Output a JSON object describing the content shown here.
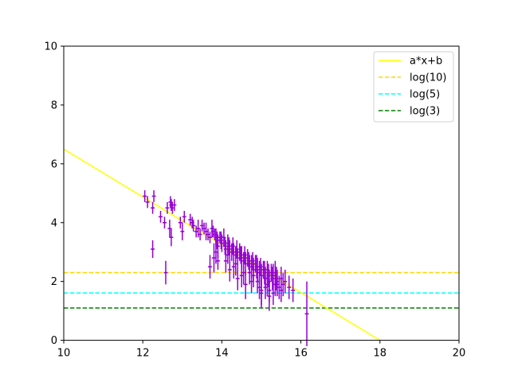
{
  "chart_data": {
    "type": "scatter",
    "title": "",
    "xlabel": "",
    "ylabel": "",
    "xlim": [
      10,
      20
    ],
    "ylim": [
      0,
      10
    ],
    "xticks": [
      10,
      12,
      14,
      16,
      18,
      20
    ],
    "yticks": [
      0,
      2,
      4,
      6,
      8,
      10
    ],
    "grid": false,
    "legend_position": "top-right",
    "legend": [
      {
        "label": "a*x+b",
        "style": "solid",
        "color": "#ffff00"
      },
      {
        "label": "log(10)",
        "style": "dashed",
        "color": "#ffd700"
      },
      {
        "label": "log(5)",
        "style": "dashed",
        "color": "#00ffff"
      },
      {
        "label": "log(3)",
        "style": "dashed",
        "color": "#008000"
      }
    ],
    "fit_line": {
      "slope": -0.8125,
      "intercept": 14.625
    },
    "hlines": [
      {
        "name": "log(10)",
        "y": 2.302585
      },
      {
        "name": "log(5)",
        "y": 1.609438
      },
      {
        "name": "log(3)",
        "y": 1.098612
      }
    ],
    "series": [
      {
        "color": "#9400d3",
        "x": [
          12.05,
          12.12,
          12.25,
          12.28,
          12.25,
          12.45,
          12.55,
          12.62,
          12.7,
          12.72,
          12.75,
          12.8,
          12.68,
          12.72,
          12.58,
          12.95,
          13.05,
          13.0,
          13.2,
          13.25,
          13.28,
          13.35,
          13.4,
          13.45,
          13.5,
          13.55,
          13.6,
          13.65,
          13.7,
          13.75,
          13.78,
          13.82,
          13.85,
          13.88,
          13.95,
          13.9,
          13.85,
          13.8,
          13.98,
          14.0,
          14.05,
          14.08,
          14.1,
          14.15,
          14.18,
          14.2,
          14.25,
          14.28,
          14.3,
          14.35,
          14.38,
          14.4,
          14.45,
          14.48,
          14.5,
          14.55,
          14.58,
          14.6,
          14.65,
          14.68,
          14.7,
          14.75,
          14.78,
          14.8,
          14.85,
          14.88,
          14.9,
          14.95,
          14.98,
          15.0,
          15.05,
          15.08,
          15.1,
          15.15,
          15.18,
          15.2,
          15.25,
          15.28,
          15.3,
          15.35,
          15.38,
          15.4,
          15.45,
          15.5,
          15.55,
          15.6,
          15.7,
          15.8,
          16.15,
          14.1,
          14.3,
          14.5,
          14.6,
          14.7,
          14.9,
          15.0,
          15.1,
          15.2,
          15.3,
          15.4,
          15.5,
          13.7,
          13.9,
          14.2,
          14.4,
          14.8,
          15.0,
          15.2,
          14.15,
          14.35,
          14.55,
          14.75,
          14.95,
          15.15,
          15.35
        ],
        "y": [
          4.9,
          4.7,
          4.5,
          4.9,
          3.1,
          4.2,
          4.0,
          4.5,
          4.7,
          4.6,
          4.5,
          4.6,
          3.8,
          3.5,
          2.3,
          4.0,
          4.2,
          3.7,
          4.1,
          4.0,
          3.9,
          3.7,
          3.8,
          3.6,
          3.9,
          3.8,
          3.7,
          3.6,
          3.5,
          3.8,
          3.7,
          3.6,
          3.5,
          3.4,
          3.5,
          3.2,
          3.0,
          2.8,
          3.4,
          3.3,
          3.5,
          3.2,
          3.1,
          3.3,
          3.2,
          3.1,
          3.0,
          3.2,
          3.0,
          2.9,
          3.1,
          2.8,
          3.0,
          2.9,
          2.8,
          2.7,
          2.9,
          2.6,
          2.8,
          2.7,
          2.6,
          2.5,
          2.7,
          2.4,
          2.6,
          2.5,
          2.4,
          2.3,
          2.5,
          2.2,
          2.4,
          2.3,
          2.1,
          2.4,
          2.2,
          2.0,
          2.3,
          2.1,
          2.2,
          1.9,
          2.1,
          2.0,
          1.8,
          2.1,
          1.9,
          2.0,
          1.8,
          1.7,
          0.9,
          2.7,
          2.5,
          2.2,
          1.9,
          2.3,
          2.0,
          1.6,
          1.8,
          1.7,
          1.6,
          1.9,
          1.7,
          2.5,
          2.7,
          2.4,
          2.1,
          2.2,
          1.7,
          1.5,
          2.9,
          2.6,
          2.3,
          2.0,
          1.8,
          1.9,
          2.3
        ],
        "yerr": [
          0.2,
          0.2,
          0.2,
          0.2,
          0.3,
          0.2,
          0.2,
          0.2,
          0.2,
          0.2,
          0.2,
          0.2,
          0.3,
          0.3,
          0.4,
          0.2,
          0.2,
          0.3,
          0.2,
          0.2,
          0.2,
          0.2,
          0.3,
          0.2,
          0.2,
          0.2,
          0.3,
          0.2,
          0.2,
          0.3,
          0.2,
          0.2,
          0.3,
          0.3,
          0.2,
          0.4,
          0.4,
          0.5,
          0.3,
          0.3,
          0.3,
          0.3,
          0.3,
          0.3,
          0.3,
          0.3,
          0.3,
          0.3,
          0.3,
          0.3,
          0.3,
          0.3,
          0.3,
          0.3,
          0.4,
          0.3,
          0.3,
          0.4,
          0.3,
          0.3,
          0.3,
          0.4,
          0.3,
          0.4,
          0.3,
          0.4,
          0.4,
          0.4,
          0.3,
          0.4,
          0.3,
          0.4,
          0.4,
          0.3,
          0.4,
          0.4,
          0.3,
          0.4,
          0.4,
          0.4,
          0.4,
          0.4,
          0.4,
          0.4,
          0.4,
          0.4,
          0.4,
          0.4,
          1.1,
          0.4,
          0.4,
          0.4,
          0.5,
          0.4,
          0.4,
          0.5,
          0.4,
          0.4,
          0.4,
          0.4,
          0.4,
          0.4,
          0.3,
          0.4,
          0.4,
          0.4,
          0.5,
          0.5,
          0.3,
          0.4,
          0.4,
          0.4,
          0.4,
          0.4,
          0.4
        ],
        "xerr": [
          0.05,
          0.05,
          0.05,
          0.05,
          0.05,
          0.05,
          0.05,
          0.05,
          0.05,
          0.05,
          0.05,
          0.05,
          0.05,
          0.05,
          0.05,
          0.05,
          0.05,
          0.05,
          0.05,
          0.05,
          0.05,
          0.05,
          0.05,
          0.05,
          0.05,
          0.05,
          0.05,
          0.05,
          0.05,
          0.05,
          0.05,
          0.05,
          0.05,
          0.05,
          0.05,
          0.05,
          0.05,
          0.05,
          0.05,
          0.05,
          0.05,
          0.05,
          0.05,
          0.05,
          0.05,
          0.05,
          0.05,
          0.05,
          0.05,
          0.05,
          0.05,
          0.05,
          0.05,
          0.05,
          0.05,
          0.05,
          0.05,
          0.05,
          0.05,
          0.05,
          0.05,
          0.05,
          0.05,
          0.05,
          0.05,
          0.05,
          0.05,
          0.05,
          0.05,
          0.05,
          0.05,
          0.05,
          0.05,
          0.05,
          0.05,
          0.05,
          0.05,
          0.05,
          0.05,
          0.05,
          0.05,
          0.05,
          0.05,
          0.05,
          0.05,
          0.05,
          0.05,
          0.05,
          0.05,
          0.05,
          0.05,
          0.05,
          0.05,
          0.05,
          0.05,
          0.05,
          0.05,
          0.05,
          0.05,
          0.05,
          0.05,
          0.05,
          0.05,
          0.05,
          0.05,
          0.05,
          0.05,
          0.05,
          0.05,
          0.05,
          0.05,
          0.05,
          0.05,
          0.05,
          0.05
        ]
      }
    ]
  }
}
